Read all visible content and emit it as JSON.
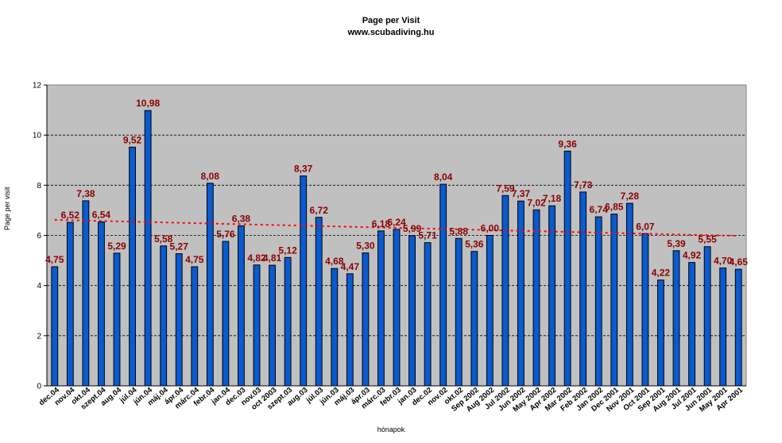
{
  "chart_data": {
    "type": "bar",
    "title": "Page per Visit",
    "subtitle": "www.scubadiving.hu",
    "xlabel": "hónapok",
    "ylabel": "Page per visit",
    "ylim": [
      0,
      12
    ],
    "yticks": [
      0,
      2,
      4,
      6,
      8,
      10,
      12
    ],
    "grid": "horizontal dashed",
    "plot_background": "#c0c0c0",
    "bar_color": "#0a5ad0",
    "label_color": "#8b0000",
    "trendline": {
      "type": "linear",
      "color": "#ff0000",
      "style": "dotted",
      "start": 6.62,
      "end": 5.98
    },
    "categories": [
      "dec.04",
      "nov.04",
      "okt.04",
      "szept.04",
      "aug.04",
      "júl.04",
      "jún.04",
      "máj.04",
      "ápr.04",
      "márc.04",
      "febr.04",
      "jan.04",
      "dec.03",
      "nov.03",
      "oct 2003",
      "szept.03",
      "aug.03",
      "júl.03",
      "jún.03",
      "máj.03",
      "ápr.03",
      "márc.03",
      "febr.03",
      "jan.03",
      "dec.02",
      "nov.02",
      "okt.02",
      "Sep 2002",
      "Aug 2002",
      "Jul 2002",
      "Jun 2002",
      "May 2002",
      "Apr 2002",
      "Mar 2002",
      "Feb 2002",
      "Jan 2002",
      "Dec 2001",
      "Nov 2001",
      "Oct 2001",
      "Sep 2001",
      "Aug 2001",
      "Jul 2001",
      "Jun 2001",
      "May 2001",
      "Apr 2001"
    ],
    "values": [
      4.75,
      6.52,
      7.38,
      6.54,
      5.29,
      9.52,
      10.98,
      5.58,
      5.27,
      4.75,
      8.08,
      5.76,
      6.38,
      4.82,
      4.81,
      5.12,
      8.37,
      6.72,
      4.68,
      4.47,
      5.3,
      6.18,
      6.24,
      5.99,
      5.71,
      8.04,
      5.88,
      5.36,
      6.0,
      7.59,
      7.37,
      7.02,
      7.18,
      9.36,
      7.73,
      6.74,
      6.85,
      7.28,
      6.07,
      4.22,
      5.39,
      4.92,
      5.55,
      4.7,
      4.65
    ],
    "value_labels": [
      "4,75",
      "6,52",
      "7,38",
      "6,54",
      "5,29",
      "9,52",
      "10,98",
      "5,58",
      "5,27",
      "4,75",
      "8,08",
      "5,76",
      "6,38",
      "4,82",
      "4,81",
      "5,12",
      "8,37",
      "6,72",
      "4,68",
      "4,47",
      "5,30",
      "6,18",
      "6,24",
      "5,99",
      "5,71",
      "8,04",
      "5,88",
      "5,36",
      "6,00",
      "7,59",
      "7,37",
      "7,02",
      "7,18",
      "9,36",
      "7,73",
      "6,74",
      "6,85",
      "7,28",
      "6,07",
      "4,22",
      "5,39",
      "4,92",
      "5,55",
      "4,70",
      "4,65"
    ]
  }
}
